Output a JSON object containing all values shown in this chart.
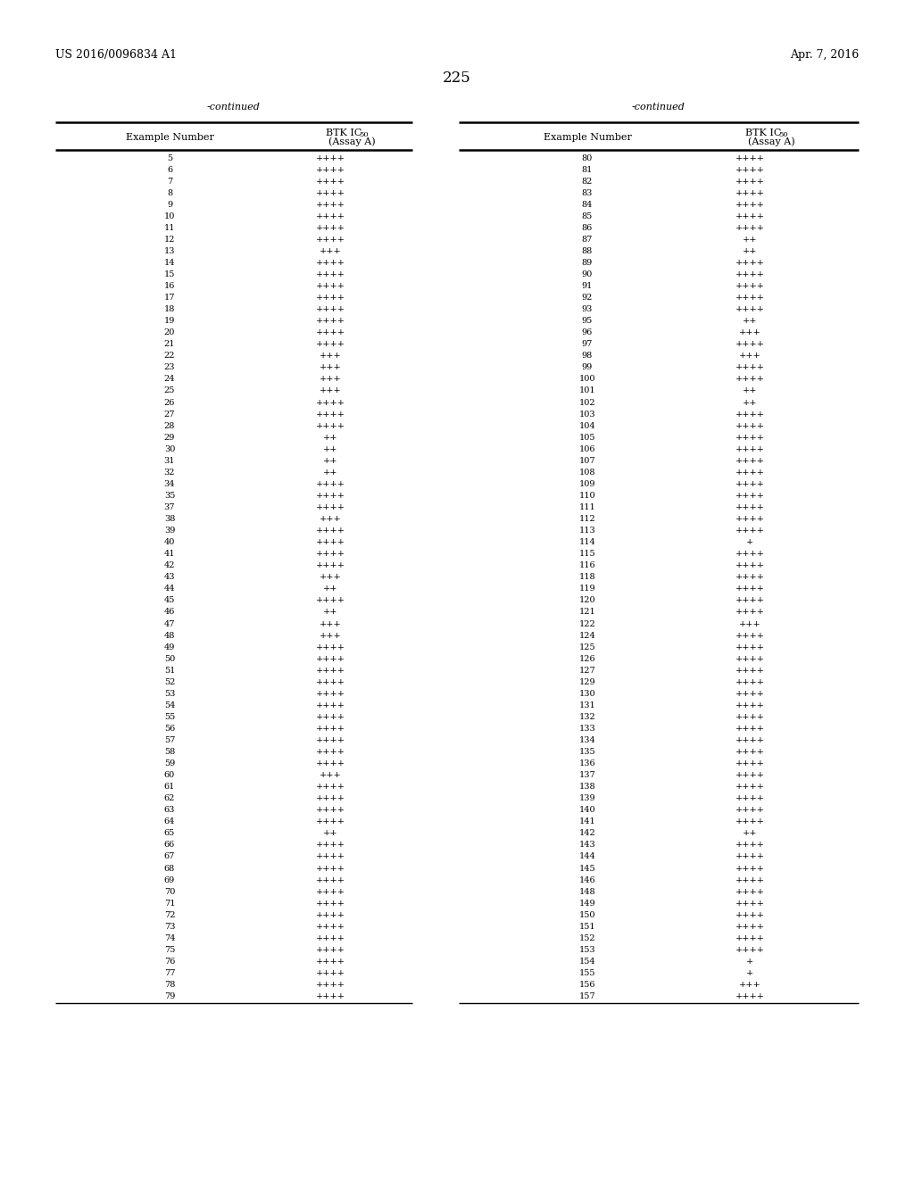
{
  "header_left": "US 2016/0096834 A1",
  "header_right": "Apr. 7, 2016",
  "page_number": "225",
  "continued_label": "-continued",
  "background_color": "#ffffff",
  "text_color": "#000000",
  "left_data": [
    [
      "5",
      "++++"
    ],
    [
      "6",
      "++++"
    ],
    [
      "7",
      "++++"
    ],
    [
      "8",
      "++++"
    ],
    [
      "9",
      "++++"
    ],
    [
      "10",
      "++++"
    ],
    [
      "11",
      "++++"
    ],
    [
      "12",
      "++++"
    ],
    [
      "13",
      "+++"
    ],
    [
      "14",
      "++++"
    ],
    [
      "15",
      "++++"
    ],
    [
      "16",
      "++++"
    ],
    [
      "17",
      "++++"
    ],
    [
      "18",
      "++++"
    ],
    [
      "19",
      "++++"
    ],
    [
      "20",
      "++++"
    ],
    [
      "21",
      "++++"
    ],
    [
      "22",
      "+++"
    ],
    [
      "23",
      "+++"
    ],
    [
      "24",
      "+++"
    ],
    [
      "25",
      "+++"
    ],
    [
      "26",
      "++++"
    ],
    [
      "27",
      "++++"
    ],
    [
      "28",
      "++++"
    ],
    [
      "29",
      "++"
    ],
    [
      "30",
      "++"
    ],
    [
      "31",
      "++"
    ],
    [
      "32",
      "++"
    ],
    [
      "34",
      "++++"
    ],
    [
      "35",
      "++++"
    ],
    [
      "37",
      "++++"
    ],
    [
      "38",
      "+++"
    ],
    [
      "39",
      "++++"
    ],
    [
      "40",
      "++++"
    ],
    [
      "41",
      "++++"
    ],
    [
      "42",
      "++++"
    ],
    [
      "43",
      "+++"
    ],
    [
      "44",
      "++"
    ],
    [
      "45",
      "++++"
    ],
    [
      "46",
      "++"
    ],
    [
      "47",
      "+++"
    ],
    [
      "48",
      "+++"
    ],
    [
      "49",
      "++++"
    ],
    [
      "50",
      "++++"
    ],
    [
      "51",
      "++++"
    ],
    [
      "52",
      "++++"
    ],
    [
      "53",
      "++++"
    ],
    [
      "54",
      "++++"
    ],
    [
      "55",
      "++++"
    ],
    [
      "56",
      "++++"
    ],
    [
      "57",
      "++++"
    ],
    [
      "58",
      "++++"
    ],
    [
      "59",
      "++++"
    ],
    [
      "60",
      "+++"
    ],
    [
      "61",
      "++++"
    ],
    [
      "62",
      "++++"
    ],
    [
      "63",
      "++++"
    ],
    [
      "64",
      "++++"
    ],
    [
      "65",
      "++"
    ],
    [
      "66",
      "++++"
    ],
    [
      "67",
      "++++"
    ],
    [
      "68",
      "++++"
    ],
    [
      "69",
      "++++"
    ],
    [
      "70",
      "++++"
    ],
    [
      "71",
      "++++"
    ],
    [
      "72",
      "++++"
    ],
    [
      "73",
      "++++"
    ],
    [
      "74",
      "++++"
    ],
    [
      "75",
      "++++"
    ],
    [
      "76",
      "++++"
    ],
    [
      "77",
      "++++"
    ],
    [
      "78",
      "++++"
    ],
    [
      "79",
      "++++"
    ]
  ],
  "right_data": [
    [
      "80",
      "++++"
    ],
    [
      "81",
      "++++"
    ],
    [
      "82",
      "++++"
    ],
    [
      "83",
      "++++"
    ],
    [
      "84",
      "++++"
    ],
    [
      "85",
      "++++"
    ],
    [
      "86",
      "++++"
    ],
    [
      "87",
      "++"
    ],
    [
      "88",
      "++"
    ],
    [
      "89",
      "++++"
    ],
    [
      "90",
      "++++"
    ],
    [
      "91",
      "++++"
    ],
    [
      "92",
      "++++"
    ],
    [
      "93",
      "++++"
    ],
    [
      "95",
      "++"
    ],
    [
      "96",
      "+++"
    ],
    [
      "97",
      "++++"
    ],
    [
      "98",
      "+++"
    ],
    [
      "99",
      "++++"
    ],
    [
      "100",
      "++++"
    ],
    [
      "101",
      "++"
    ],
    [
      "102",
      "++"
    ],
    [
      "103",
      "++++"
    ],
    [
      "104",
      "++++"
    ],
    [
      "105",
      "++++"
    ],
    [
      "106",
      "++++"
    ],
    [
      "107",
      "++++"
    ],
    [
      "108",
      "++++"
    ],
    [
      "109",
      "++++"
    ],
    [
      "110",
      "++++"
    ],
    [
      "111",
      "++++"
    ],
    [
      "112",
      "++++"
    ],
    [
      "113",
      "++++"
    ],
    [
      "114",
      "+"
    ],
    [
      "115",
      "++++"
    ],
    [
      "116",
      "++++"
    ],
    [
      "118",
      "++++"
    ],
    [
      "119",
      "++++"
    ],
    [
      "120",
      "++++"
    ],
    [
      "121",
      "++++"
    ],
    [
      "122",
      "+++"
    ],
    [
      "124",
      "++++"
    ],
    [
      "125",
      "++++"
    ],
    [
      "126",
      "++++"
    ],
    [
      "127",
      "++++"
    ],
    [
      "129",
      "++++"
    ],
    [
      "130",
      "++++"
    ],
    [
      "131",
      "++++"
    ],
    [
      "132",
      "++++"
    ],
    [
      "133",
      "++++"
    ],
    [
      "134",
      "++++"
    ],
    [
      "135",
      "++++"
    ],
    [
      "136",
      "++++"
    ],
    [
      "137",
      "++++"
    ],
    [
      "138",
      "++++"
    ],
    [
      "139",
      "++++"
    ],
    [
      "140",
      "++++"
    ],
    [
      "141",
      "++++"
    ],
    [
      "142",
      "++"
    ],
    [
      "143",
      "++++"
    ],
    [
      "144",
      "++++"
    ],
    [
      "145",
      "++++"
    ],
    [
      "146",
      "++++"
    ],
    [
      "148",
      "++++"
    ],
    [
      "149",
      "++++"
    ],
    [
      "150",
      "++++"
    ],
    [
      "151",
      "++++"
    ],
    [
      "152",
      "++++"
    ],
    [
      "153",
      "++++"
    ],
    [
      "154",
      "+"
    ],
    [
      "155",
      "+"
    ],
    [
      "156",
      "+++"
    ],
    [
      "157",
      "++++"
    ]
  ]
}
